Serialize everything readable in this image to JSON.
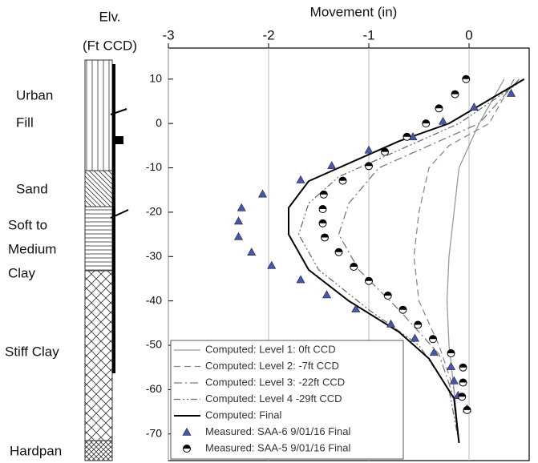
{
  "chart_data": {
    "type": "line",
    "title": "Movement (in)",
    "ylabel": [
      "Elv.",
      "(Ft CCD)"
    ],
    "soil_layers": [
      "Urban",
      "Fill",
      "Sand",
      "Soft to",
      "Medium",
      "Clay",
      "Stiff Clay",
      "Hardpan"
    ],
    "xlim": [
      -3,
      0.6
    ],
    "xticks": [
      -3,
      -2,
      -1,
      0
    ],
    "ylim": [
      -76,
      17
    ],
    "yticks": [
      10,
      0,
      -10,
      -20,
      -30,
      -40,
      -50,
      -60,
      -70
    ],
    "grid": true,
    "series": [
      {
        "name": "Computed: Level 1: 0ft CCD",
        "color": "#9a9a9a",
        "x": [
          0.35,
          0.1,
          0.0,
          -0.1,
          -0.15,
          -0.2,
          -0.22,
          -0.2,
          -0.15,
          -0.1
        ],
        "y": [
          10,
          0,
          -5,
          -10,
          -20,
          -30,
          -40,
          -50,
          -60,
          -72
        ]
      },
      {
        "name": "Computed: Level 2: -7ft CCD",
        "color": "#8a8a8a",
        "x": [
          0.45,
          0.2,
          -0.2,
          -0.4,
          -0.5,
          -0.55,
          -0.5,
          -0.3,
          -0.15,
          -0.1
        ],
        "y": [
          10,
          0,
          -5,
          -10,
          -20,
          -30,
          -40,
          -50,
          -60,
          -72
        ]
      },
      {
        "name": "Computed: Level 3: -22ft CCD",
        "color": "#7a7a7a",
        "x": [
          0.5,
          0.1,
          -0.4,
          -0.9,
          -1.2,
          -1.3,
          -1.1,
          -0.7,
          -0.3,
          -0.15,
          -0.1
        ],
        "y": [
          10,
          0,
          -5,
          -10,
          -18,
          -25,
          -33,
          -42,
          -52,
          -62,
          -72
        ]
      },
      {
        "name": "Computed: Level 4 -29ft CCD",
        "color": "#6e6e6e",
        "x": [
          0.55,
          -0.1,
          -0.7,
          -1.3,
          -1.6,
          -1.7,
          -1.5,
          -1.0,
          -0.5,
          -0.2,
          -0.1
        ],
        "y": [
          10,
          0,
          -6,
          -12,
          -18,
          -25,
          -33,
          -42,
          -50,
          -60,
          -72
        ]
      },
      {
        "name": "Computed: Final",
        "color": "#000000",
        "x": [
          0.55,
          -0.2,
          -0.7,
          -1.1,
          -1.6,
          -1.8,
          -1.8,
          -1.6,
          -1.2,
          -0.7,
          -0.4,
          -0.15,
          -0.1
        ],
        "y": [
          10,
          0,
          -4,
          -8,
          -13,
          -19,
          -25,
          -33,
          -40,
          -47,
          -53,
          -62,
          -72
        ]
      },
      {
        "name": "Measured: SAA-6 9/01/16 Final",
        "color": "#4656b0",
        "marker": "triangle",
        "x": [
          0.42,
          0.05,
          -0.26,
          -0.56,
          -1.0,
          -1.37,
          -1.68,
          -2.06,
          -2.27,
          -2.3,
          -2.3,
          -2.17,
          -1.97,
          -1.68,
          -1.42,
          -1.13,
          -0.78,
          -0.54,
          -0.35,
          -0.18,
          -0.15,
          -0.11,
          -0.02
        ],
        "y": [
          6.8,
          3.7,
          0.5,
          -3,
          -6,
          -9.5,
          -12.7,
          -15.9,
          -19,
          -22,
          -25.5,
          -29,
          -32,
          -35.2,
          -38.6,
          -41.8,
          -45.2,
          -48.4,
          -51.6,
          -54.8,
          -58,
          -61.3,
          -64.3
        ]
      },
      {
        "name": "Measured: SAA-5 9/01/16 Final",
        "color": "#000000",
        "marker": "circle",
        "x": [
          -0.03,
          -0.14,
          -0.3,
          -0.43,
          -0.62,
          -0.84,
          -1.0,
          -1.26,
          -1.45,
          -1.46,
          -1.46,
          -1.44,
          -1.3,
          -1.15,
          -1.0,
          -0.81,
          -0.66,
          -0.51,
          -0.36,
          -0.18,
          -0.06,
          -0.06,
          -0.07,
          -0.02
        ],
        "y": [
          10,
          6.6,
          3.4,
          0,
          -3,
          -6.4,
          -9.6,
          -12.9,
          -16,
          -19.3,
          -22.5,
          -25.7,
          -29,
          -32.3,
          -35.5,
          -38.8,
          -42,
          -45.4,
          -48.6,
          -51.8,
          -55,
          -58.4,
          -61.6,
          -64.6
        ]
      }
    ]
  }
}
